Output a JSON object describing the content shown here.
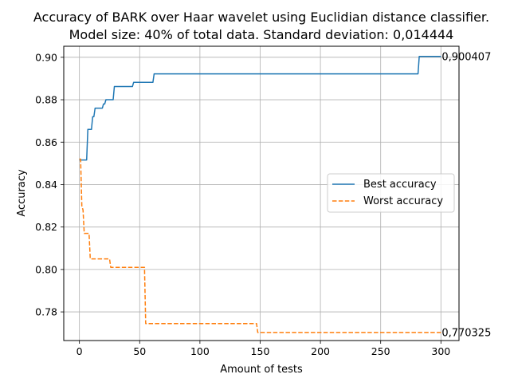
{
  "chart_data": {
    "type": "line",
    "title_line1": "Accuracy of BARK over Haar wavelet using Euclidian distance classifier.",
    "title_line2": "Model size: 40% of total data. Standard deviation: 0,014444",
    "xlabel": "Amount of tests",
    "ylabel": "Accuracy",
    "xlim": [
      -13,
      315
    ],
    "ylim": [
      0.7665,
      0.9052
    ],
    "xticks": [
      0,
      50,
      100,
      150,
      200,
      250,
      300
    ],
    "yticks": [
      0.78,
      0.8,
      0.82,
      0.84,
      0.86,
      0.88,
      0.9
    ],
    "ytick_labels": [
      "0.78",
      "0.80",
      "0.82",
      "0.84",
      "0.86",
      "0.88",
      "0.90"
    ],
    "grid": true,
    "legend_position": "center-right",
    "series": [
      {
        "name": "Best accuracy",
        "color": "#1f77b4",
        "style": "solid",
        "end_label": "0,900407",
        "x": [
          0,
          1,
          6,
          7,
          10,
          11,
          12,
          13,
          19,
          20,
          21,
          22,
          28,
          29,
          44,
          45,
          61,
          62,
          281,
          282,
          300
        ],
        "y": [
          0.8516,
          0.8516,
          0.8516,
          0.866,
          0.866,
          0.872,
          0.872,
          0.876,
          0.876,
          0.878,
          0.878,
          0.88,
          0.88,
          0.8862,
          0.8862,
          0.8882,
          0.8882,
          0.8922,
          0.8922,
          0.9004,
          0.9004
        ]
      },
      {
        "name": "Worst accuracy",
        "color": "#ff7f0e",
        "style": "dashed",
        "end_label": "0,770325",
        "x": [
          0,
          1,
          2,
          3,
          4,
          8,
          9,
          25,
          26,
          54,
          55,
          147,
          148,
          300
        ],
        "y": [
          0.852,
          0.852,
          0.83,
          0.828,
          0.817,
          0.817,
          0.805,
          0.805,
          0.801,
          0.801,
          0.7745,
          0.7745,
          0.7703,
          0.7703
        ]
      }
    ]
  }
}
